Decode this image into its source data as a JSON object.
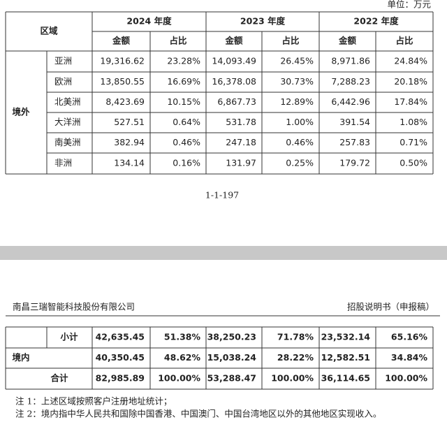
{
  "unit": "单位：万元",
  "table1": {
    "header": {
      "region": "区域",
      "years": [
        "2024 年度",
        "2023 年度",
        "2022 年度"
      ],
      "amount": "金额",
      "share": "占比"
    },
    "group": "境外",
    "rows": [
      {
        "region": "亚洲",
        "cells": [
          "19,316.62",
          "23.28%",
          "14,093.49",
          "26.45%",
          "8,971.86",
          "24.84%"
        ]
      },
      {
        "region": "欧洲",
        "cells": [
          "13,850.55",
          "16.69%",
          "16,378.08",
          "30.73%",
          "7,288.23",
          "20.18%"
        ]
      },
      {
        "region": "北美洲",
        "cells": [
          "8,423.69",
          "10.15%",
          "6,867.73",
          "12.89%",
          "6,442.96",
          "17.84%"
        ]
      },
      {
        "region": "大洋洲",
        "cells": [
          "527.51",
          "0.64%",
          "531.78",
          "1.00%",
          "391.54",
          "1.08%"
        ]
      },
      {
        "region": "南美洲",
        "cells": [
          "382.94",
          "0.46%",
          "247.18",
          "0.46%",
          "257.83",
          "0.71%"
        ]
      },
      {
        "region": "非洲",
        "cells": [
          "134.14",
          "0.16%",
          "131.97",
          "0.25%",
          "179.72",
          "0.50%"
        ]
      }
    ]
  },
  "page_number": "1-1-197",
  "page_header": {
    "company": "南昌三瑞智能科技股份有限公司",
    "doc": "招股说明书（申报稿）"
  },
  "table2": {
    "rows": [
      {
        "label": "小计",
        "cells": [
          "42,635.45",
          "51.38%",
          "38,250.23",
          "71.78%",
          "23,532.14",
          "65.16%"
        ]
      },
      {
        "label": "境内",
        "cells": [
          "40,350.45",
          "48.62%",
          "15,038.24",
          "28.22%",
          "12,582.51",
          "34.84%"
        ]
      },
      {
        "label": "合计",
        "cells": [
          "82,985.89",
          "100.00%",
          "53,288.47",
          "100.00%",
          "36,114.65",
          "100.00%"
        ]
      }
    ]
  },
  "notes": [
    "注 1：上述区域按照客户注册地址统计；",
    "注 2：境内指中华人民共和国除中国香港、中国澳门、中国台湾地区以外的其他地区实现收入。"
  ]
}
